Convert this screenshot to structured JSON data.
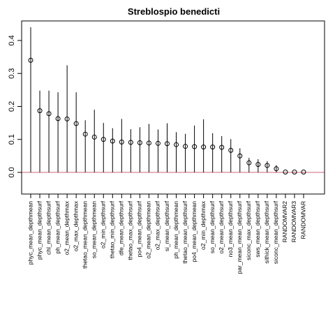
{
  "chart_data": {
    "type": "scatter",
    "title": "Streblospio benedicti",
    "xlabel": "",
    "ylabel": "",
    "ylim": [
      -0.06,
      0.46
    ],
    "yticks": [
      "0.0",
      "0.1",
      "0.2",
      "0.3",
      "0.4"
    ],
    "ytick_values": [
      0.0,
      0.1,
      0.2,
      0.3,
      0.4
    ],
    "reference_line": 0.0,
    "grid": false,
    "colors": {
      "reference_line": "#cc6677",
      "points": "#000000",
      "axes": "#000000"
    },
    "categories": [
      "phyc_mean_depthmean",
      "phyc_mean_depthsurf",
      "chl_mean_depthsurf",
      "ph_mean_depthsurf",
      "o2_mean_depthmax",
      "o2_max_depthmax",
      "thetao_mean_depthmean",
      "so_mean_depthmean",
      "o2_min_depthsurf",
      "thetao_min_depthsurf",
      "dfe_mean_depthsurf",
      "thetao_max_depthsurf",
      "po4_mean_depthsurf",
      "o2_mean_depthmean",
      "o2_max_depthsurf",
      "si_mean_depthsurf",
      "ph_mean_depthmean",
      "thetao_mean_depthsurf",
      "po4_mean_depthmean",
      "o2_min_depthmax",
      "so_mean_depthsurf",
      "o2_mean_depthsurf",
      "no3_mean_depthsurf",
      "par_mean_mean_depthsurf",
      "siconc_max_depthsurf",
      "sws_mean_depthsurf",
      "sithick_mean_depthsurf",
      "siconc_mean_depthsurf",
      "RANDOMVAR2",
      "RANDOMVAR3",
      "RANDOMVAR"
    ],
    "values": [
      0.34,
      0.187,
      0.178,
      0.163,
      0.162,
      0.148,
      0.116,
      0.107,
      0.1,
      0.095,
      0.092,
      0.091,
      0.09,
      0.089,
      0.088,
      0.087,
      0.084,
      0.079,
      0.078,
      0.077,
      0.077,
      0.076,
      0.067,
      0.05,
      0.029,
      0.024,
      0.021,
      0.011,
      0.001,
      0.001,
      0.001
    ],
    "upper": [
      0.44,
      0.248,
      0.248,
      0.243,
      0.325,
      0.243,
      0.158,
      0.19,
      0.15,
      0.134,
      0.162,
      0.131,
      0.137,
      0.147,
      0.13,
      0.149,
      0.122,
      0.117,
      0.142,
      0.161,
      0.119,
      0.11,
      0.101,
      0.073,
      0.044,
      0.04,
      0.034,
      0.022,
      0.001,
      0.001,
      0.001
    ],
    "lower": [
      0.0,
      0.0,
      0.0,
      0.0,
      0.0,
      0.0,
      0.0,
      0.0,
      0.0,
      0.0,
      0.0,
      0.0,
      0.0,
      0.0,
      0.0,
      0.0,
      0.0,
      0.0,
      0.0,
      0.0,
      0.0,
      0.0,
      0.0,
      0.0,
      0.0,
      0.0,
      0.0,
      0.0,
      0.0,
      0.0,
      0.0
    ]
  }
}
